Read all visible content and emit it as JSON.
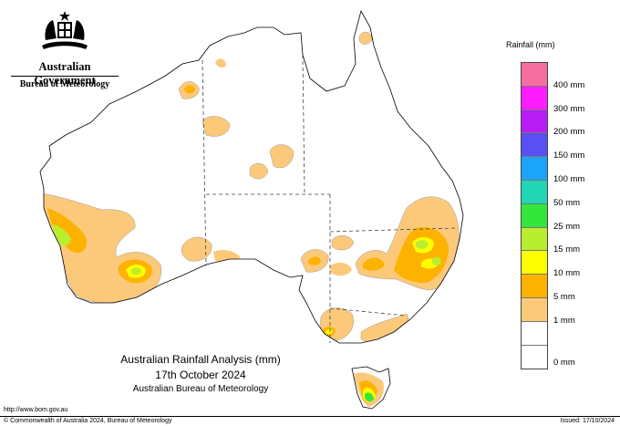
{
  "header": {
    "government": "Australian Government",
    "bureau": "Bureau of Meteorology"
  },
  "map": {
    "title_line1": "Australian Rainfall Analysis (mm)",
    "date": "17th October 2024",
    "agency": "Australian Bureau of Meteorology"
  },
  "legend": {
    "title": "Rainfall (mm)",
    "items": [
      {
        "label": "",
        "color": "#f66ea0"
      },
      {
        "label": "400 mm",
        "color": "#ff1dff"
      },
      {
        "label": "300 mm",
        "color": "#b81df5"
      },
      {
        "label": "200 mm",
        "color": "#5a4ff0"
      },
      {
        "label": "150 mm",
        "color": "#1ca4f8"
      },
      {
        "label": "100 mm",
        "color": "#22d6b4"
      },
      {
        "label": "50 mm",
        "color": "#34e63c"
      },
      {
        "label": "25 mm",
        "color": "#b9ee30"
      },
      {
        "label": "15 mm",
        "color": "#fefe00"
      },
      {
        "label": "10 mm",
        "color": "#fdb200"
      },
      {
        "label": "5 mm",
        "color": "#fcc97a"
      },
      {
        "label": "1 mm",
        "color": "#ffffff"
      },
      {
        "label": "0 mm",
        "color": "#ffffff"
      }
    ]
  },
  "footer": {
    "url": "http://www.bom.gov.au",
    "copyright": "© Commonwealth of Australia 2024, Bureau of Meteorology",
    "issued": "Issued: 17/10/2024"
  },
  "colors": {
    "light": "#fcc97a",
    "orange": "#fdb200",
    "yellow": "#fefe00",
    "lime": "#b9ee30",
    "green": "#34e63c"
  }
}
